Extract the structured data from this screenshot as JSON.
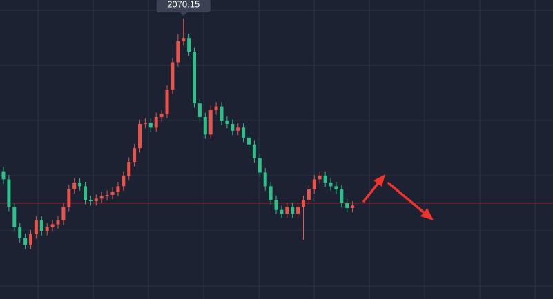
{
  "chart_data": {
    "type": "candlestick",
    "open": [
      1825,
      1812,
      1768,
      1735,
      1718,
      1707,
      1724,
      1746,
      1729,
      1735,
      1740,
      1746,
      1768,
      1796,
      1807,
      1801,
      1779,
      1777,
      1781,
      1785,
      1787,
      1792,
      1801,
      1818,
      1840,
      1862,
      1901,
      1903,
      1895,
      1912,
      1917,
      1956,
      2000,
      2034,
      2039,
      2017,
      1934,
      1912,
      1884,
      1923,
      1929,
      1906,
      1901,
      1890,
      1895,
      1879,
      1868,
      1846,
      1823,
      1801,
      1779,
      1763,
      1757,
      1768,
      1757,
      1768,
      1779,
      1796,
      1812,
      1818,
      1807,
      1801,
      1796,
      1774,
      1766
    ],
    "high": [
      1832,
      1819,
      1775,
      1742,
      1725,
      1731,
      1753,
      1753,
      1742,
      1747,
      1753,
      1775,
      1803,
      1814,
      1814,
      1808,
      1786,
      1788,
      1792,
      1794,
      1799,
      1808,
      1825,
      1847,
      1869,
      1908,
      1910,
      1910,
      1919,
      1924,
      1963,
      2007,
      2045,
      2070.15,
      2046,
      2024,
      1941,
      1919,
      1930,
      1936,
      1936,
      1913,
      1908,
      1902,
      1902,
      1886,
      1875,
      1853,
      1830,
      1808,
      1786,
      1770,
      1775,
      1775,
      1775,
      1786,
      1803,
      1819,
      1825,
      1825,
      1814,
      1808,
      1803,
      1781,
      1777
    ],
    "low": [
      1805,
      1761,
      1728,
      1711,
      1700,
      1700,
      1717,
      1722,
      1722,
      1728,
      1733,
      1739,
      1761,
      1789,
      1794,
      1772,
      1770,
      1770,
      1774,
      1778,
      1780,
      1785,
      1794,
      1811,
      1833,
      1855,
      1894,
      1888,
      1888,
      1905,
      1910,
      1949,
      1993,
      2027,
      2010,
      1927,
      1905,
      1877,
      1877,
      1916,
      1899,
      1894,
      1883,
      1883,
      1872,
      1861,
      1839,
      1816,
      1794,
      1772,
      1756,
      1750,
      1750,
      1750,
      1750,
      1715,
      1772,
      1789,
      1805,
      1800,
      1794,
      1789,
      1767,
      1759,
      1759
    ],
    "close": [
      1812,
      1768,
      1735,
      1718,
      1707,
      1724,
      1746,
      1729,
      1735,
      1740,
      1746,
      1768,
      1796,
      1807,
      1801,
      1779,
      1777,
      1781,
      1785,
      1787,
      1792,
      1801,
      1818,
      1840,
      1862,
      1901,
      1903,
      1895,
      1912,
      1917,
      1956,
      2000,
      2034,
      2039,
      2017,
      1934,
      1912,
      1884,
      1923,
      1929,
      1906,
      1901,
      1890,
      1895,
      1879,
      1868,
      1846,
      1823,
      1801,
      1779,
      1763,
      1757,
      1768,
      1757,
      1768,
      1779,
      1796,
      1812,
      1818,
      1807,
      1801,
      1796,
      1774,
      1766,
      1770
    ],
    "up_color": "#e8534b",
    "down_color": "#2fbf88",
    "reference_line": 1774,
    "reference_color": "#b8434a",
    "ylim": [
      1620,
      2100
    ]
  }
}
